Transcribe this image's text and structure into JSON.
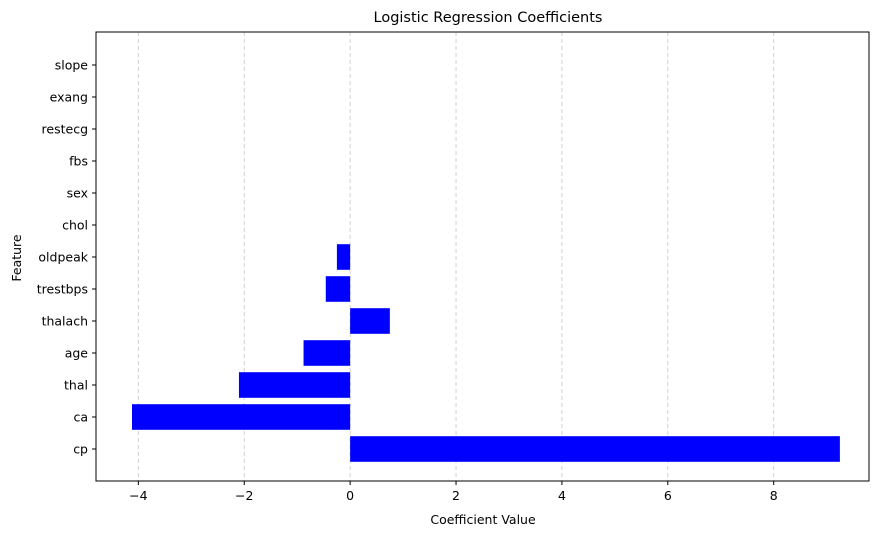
{
  "chart_data": {
    "type": "bar",
    "orientation": "horizontal",
    "title": "Logistic Regression Coefficients",
    "xlabel": "Coefficient Value",
    "ylabel": "Feature",
    "categories": [
      "cp",
      "ca",
      "thal",
      "age",
      "thalach",
      "trestbps",
      "oldpeak",
      "chol",
      "sex",
      "fbs",
      "restecg",
      "exang",
      "slope"
    ],
    "values": [
      9.25,
      -4.12,
      -2.1,
      -0.88,
      0.75,
      -0.46,
      -0.25,
      0.0,
      0.0,
      0.0,
      0.0,
      0.0,
      0.0
    ],
    "xlim": [
      -4.8,
      9.8
    ],
    "xticks": [
      -4,
      -2,
      0,
      2,
      4,
      6,
      8
    ],
    "xtick_labels": [
      "−4",
      "−2",
      "0",
      "2",
      "4",
      "6",
      "8"
    ],
    "grid": {
      "x": true,
      "y": false,
      "style": "dashed"
    },
    "bar_color": "#0000ff"
  }
}
